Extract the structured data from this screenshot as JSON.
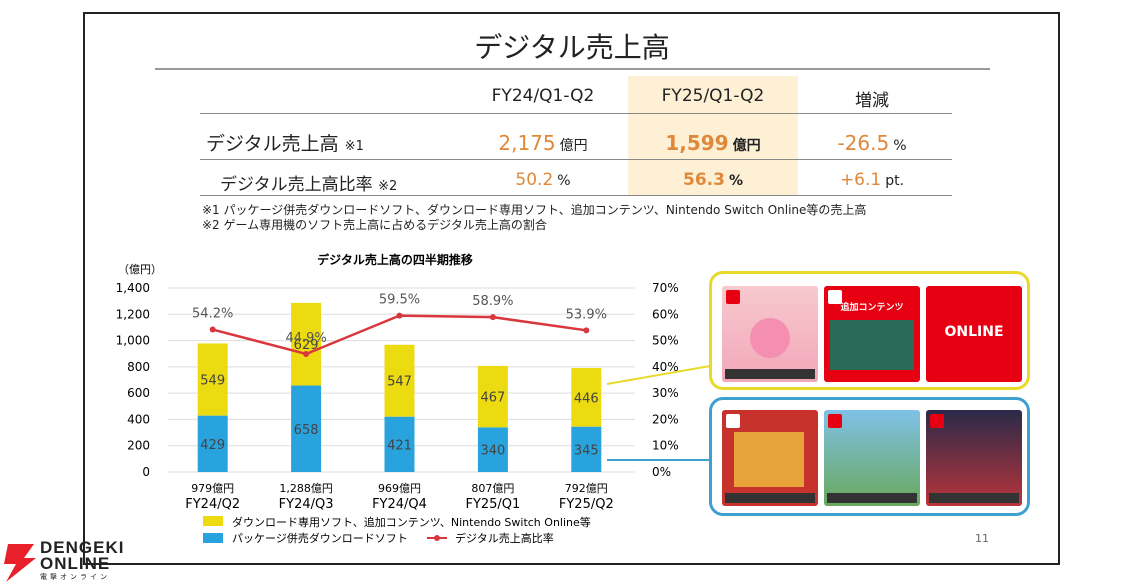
{
  "title": "デジタル売上高",
  "table": {
    "headers": [
      "FY24/Q1-Q2",
      "FY25/Q1-Q2",
      "増減"
    ],
    "rows": [
      {
        "label": "デジタル売上高",
        "mark": "※1",
        "fy24": "2,175",
        "fy24_unit": "億円",
        "fy25": "1,599",
        "fy25_unit": "億円",
        "diff": "-26.5",
        "diff_unit": "%"
      },
      {
        "label": "デジタル売上高比率",
        "mark": "※2",
        "fy24": "50.2",
        "fy24_unit": "%",
        "fy25": "56.3",
        "fy25_unit": "%",
        "diff": "+6.1",
        "diff_unit": "pt."
      }
    ]
  },
  "notes": [
    "※1 パッケージ併売ダウンロードソフト、ダウンロード専用ソフト、追加コンテンツ、Nintendo Switch Online等の売上高",
    "※2 ゲーム専用機のソフト売上高に占めるデジタル売上高の割合"
  ],
  "chart_data": {
    "type": "bar",
    "title": "デジタル売上高の四半期推移",
    "ylabel": "（億円）",
    "ylim": [
      0,
      1400
    ],
    "y2lim": [
      0,
      70
    ],
    "yticks": [
      "0",
      "200",
      "400",
      "600",
      "800",
      "1,000",
      "1,200",
      "1,400"
    ],
    "y2ticks": [
      "0%",
      "10%",
      "20%",
      "30%",
      "40%",
      "50%",
      "60%",
      "70%"
    ],
    "categories": [
      "FY24/Q2",
      "FY24/Q3",
      "FY24/Q4",
      "FY25/Q1",
      "FY25/Q2"
    ],
    "totals": [
      "979億円",
      "1,288億円",
      "969億円",
      "807億円",
      "792億円"
    ],
    "series": [
      {
        "name": "パッケージ併売ダウンロードソフト",
        "type": "stacked-bar",
        "color": "#29a3dd",
        "values": [
          429,
          658,
          421,
          340,
          345
        ]
      },
      {
        "name": "ダウンロード専用ソフト、追加コンテンツ、Nintendo Switch Online等",
        "type": "stacked-bar",
        "color": "#ecdb10",
        "values": [
          549,
          629,
          547,
          467,
          446
        ]
      },
      {
        "name": "デジタル売上高比率",
        "type": "line",
        "axis": "right",
        "color": "#d9363e",
        "values": [
          54.2,
          44.9,
          59.5,
          58.9,
          53.9
        ],
        "labels": [
          "54.2%",
          "44.9%",
          "59.5%",
          "58.9%",
          "53.9%"
        ]
      }
    ],
    "grid": true,
    "legend": "bottom"
  },
  "products": {
    "online_label": "ONLINE",
    "addon_label": "追加コンテンツ"
  },
  "page_number": "11",
  "logo": {
    "line1": "DENGEKI",
    "line2": "ONLINE",
    "line3": "電撃オンライン"
  }
}
